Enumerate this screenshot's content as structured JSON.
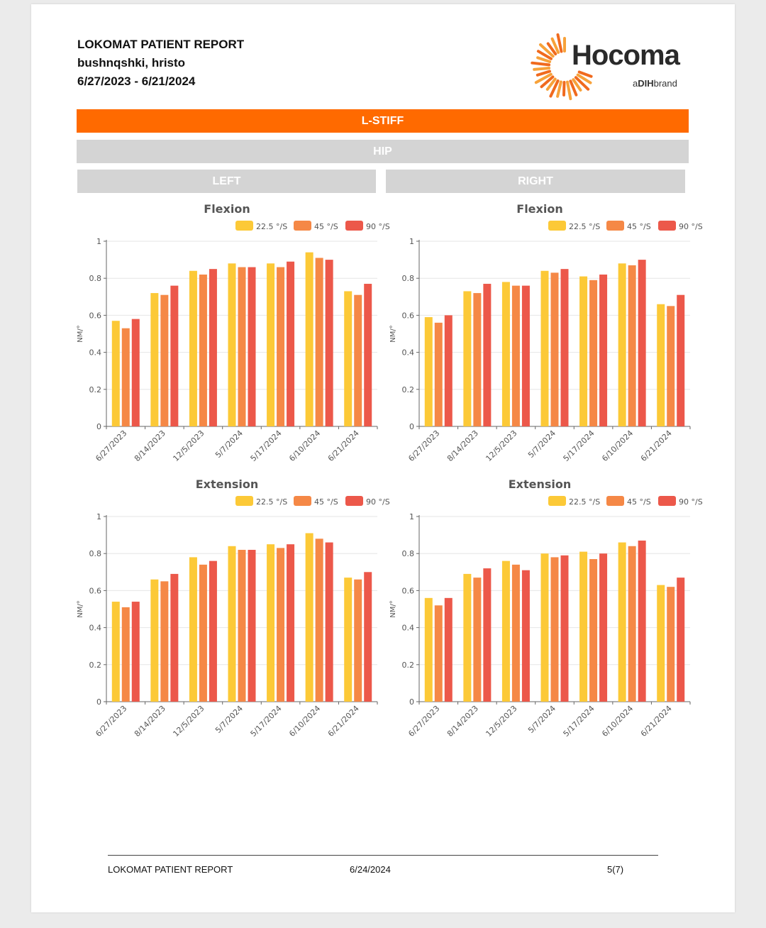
{
  "header": {
    "title": "LOKOMAT PATIENT REPORT",
    "patient": "bushnqshki, hristo",
    "date_range": "6/27/2023 - 6/21/2024"
  },
  "logo": {
    "name": "Hocoma",
    "sub_prefix": "a",
    "sub_brand": "DIH",
    "sub_suffix": "brand"
  },
  "section": {
    "band_title": "L-STIFF",
    "joint": "HIP",
    "left_label": "LEFT",
    "right_label": "RIGHT"
  },
  "colors": {
    "s1": "#fcc937",
    "s2": "#f58846",
    "s3": "#ec584a",
    "band": "#ff6a00",
    "grey_band": "#d4d4d4"
  },
  "chart_data": [
    {
      "type": "bar",
      "title": "Flexion",
      "side": "LEFT",
      "xlabel": "",
      "ylabel": "NM/°",
      "ylim": [
        0,
        1
      ],
      "yticks": [
        "0",
        "0.2",
        "0.4",
        "0.6",
        "0.8",
        "1"
      ],
      "grid": true,
      "legend": "top",
      "categories": [
        "6/27/2023",
        "8/14/2023",
        "12/5/2023",
        "5/7/2024",
        "5/17/2024",
        "6/10/2024",
        "6/21/2024"
      ],
      "series": [
        {
          "name": "22.5 °/S",
          "color": "#fcc937",
          "values": [
            0.57,
            0.72,
            0.84,
            0.88,
            0.88,
            0.94,
            0.73
          ]
        },
        {
          "name": "45 °/S",
          "color": "#f58846",
          "values": [
            0.53,
            0.71,
            0.82,
            0.86,
            0.86,
            0.91,
            0.71
          ]
        },
        {
          "name": "90 °/S",
          "color": "#ec584a",
          "values": [
            0.58,
            0.76,
            0.85,
            0.86,
            0.89,
            0.9,
            0.77
          ]
        }
      ]
    },
    {
      "type": "bar",
      "title": "Flexion",
      "side": "RIGHT",
      "xlabel": "",
      "ylabel": "NM/°",
      "ylim": [
        0,
        1
      ],
      "yticks": [
        "0",
        "0.2",
        "0.4",
        "0.6",
        "0.8",
        "1"
      ],
      "grid": true,
      "legend": "top",
      "categories": [
        "6/27/2023",
        "8/14/2023",
        "12/5/2023",
        "5/7/2024",
        "5/17/2024",
        "6/10/2024",
        "6/21/2024"
      ],
      "series": [
        {
          "name": "22.5 °/S",
          "color": "#fcc937",
          "values": [
            0.59,
            0.73,
            0.78,
            0.84,
            0.81,
            0.88,
            0.66
          ]
        },
        {
          "name": "45 °/S",
          "color": "#f58846",
          "values": [
            0.56,
            0.72,
            0.76,
            0.83,
            0.79,
            0.87,
            0.65
          ]
        },
        {
          "name": "90 °/S",
          "color": "#ec584a",
          "values": [
            0.6,
            0.77,
            0.76,
            0.85,
            0.82,
            0.9,
            0.71
          ]
        }
      ]
    },
    {
      "type": "bar",
      "title": "Extension",
      "side": "LEFT",
      "xlabel": "",
      "ylabel": "NM/°",
      "ylim": [
        0,
        1
      ],
      "yticks": [
        "0",
        "0.2",
        "0.4",
        "0.6",
        "0.8",
        "1"
      ],
      "grid": true,
      "legend": "top",
      "categories": [
        "6/27/2023",
        "8/14/2023",
        "12/5/2023",
        "5/7/2024",
        "5/17/2024",
        "6/10/2024",
        "6/21/2024"
      ],
      "series": [
        {
          "name": "22.5 °/S",
          "color": "#fcc937",
          "values": [
            0.54,
            0.66,
            0.78,
            0.84,
            0.85,
            0.91,
            0.67
          ]
        },
        {
          "name": "45 °/S",
          "color": "#f58846",
          "values": [
            0.51,
            0.65,
            0.74,
            0.82,
            0.83,
            0.88,
            0.66
          ]
        },
        {
          "name": "90 °/S",
          "color": "#ec584a",
          "values": [
            0.54,
            0.69,
            0.76,
            0.82,
            0.85,
            0.86,
            0.7
          ]
        }
      ]
    },
    {
      "type": "bar",
      "title": "Extension",
      "side": "RIGHT",
      "xlabel": "",
      "ylabel": "NM/°",
      "ylim": [
        0,
        1
      ],
      "yticks": [
        "0",
        "0.2",
        "0.4",
        "0.6",
        "0.8",
        "1"
      ],
      "grid": true,
      "legend": "top",
      "categories": [
        "6/27/2023",
        "8/14/2023",
        "12/5/2023",
        "5/7/2024",
        "5/17/2024",
        "6/10/2024",
        "6/21/2024"
      ],
      "series": [
        {
          "name": "22.5 °/S",
          "color": "#fcc937",
          "values": [
            0.56,
            0.69,
            0.76,
            0.8,
            0.81,
            0.86,
            0.63
          ]
        },
        {
          "name": "45 °/S",
          "color": "#f58846",
          "values": [
            0.52,
            0.67,
            0.74,
            0.78,
            0.77,
            0.84,
            0.62
          ]
        },
        {
          "name": "90 °/S",
          "color": "#ec584a",
          "values": [
            0.56,
            0.72,
            0.71,
            0.79,
            0.8,
            0.87,
            0.67
          ]
        }
      ]
    }
  ],
  "footer": {
    "left": "LOKOMAT PATIENT REPORT",
    "center": "6/24/2024",
    "right": "5(7)"
  }
}
